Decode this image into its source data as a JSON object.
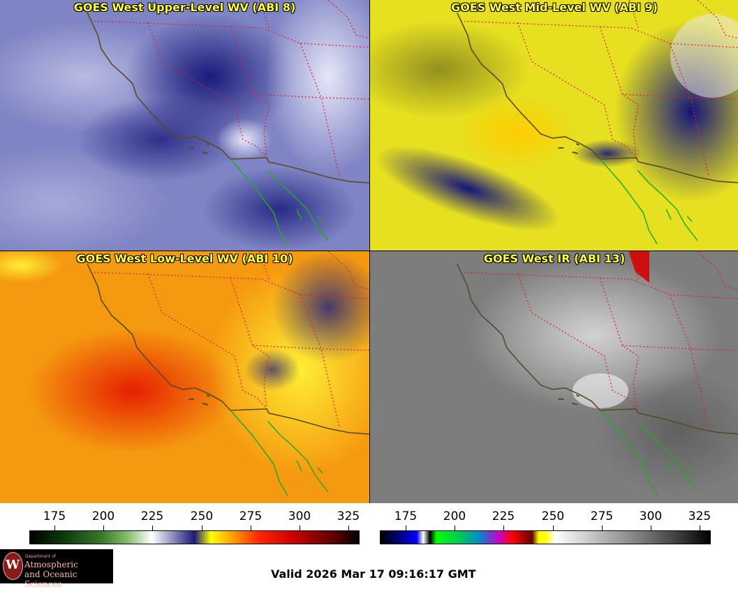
{
  "panels": [
    {
      "title": "GOES West Upper-Level WV (ABI 8)"
    },
    {
      "title": "GOES West Mid-Level WV (ABI 9)"
    },
    {
      "title": "GOES West Low-Level WV (ABI 10)"
    },
    {
      "title": "GOES West IR (ABI 13)"
    }
  ],
  "colorbars": {
    "wv": {
      "ticks": [
        "175",
        "200",
        "225",
        "250",
        "275",
        "300",
        "325"
      ]
    },
    "ir": {
      "ticks": [
        "175",
        "200",
        "225",
        "250",
        "275",
        "300",
        "325"
      ]
    }
  },
  "colors": {
    "state_borders": "#e0202a",
    "coastline": "#5a4a22",
    "mexico_coast": "#22aa22",
    "title_text": "#ffff33"
  },
  "logo": {
    "dept": "Department of",
    "line1": "Atmospheric",
    "line2": "and Oceanic Sciences"
  },
  "valid_time": "Valid 2026 Mar 17 09:16:17 GMT"
}
